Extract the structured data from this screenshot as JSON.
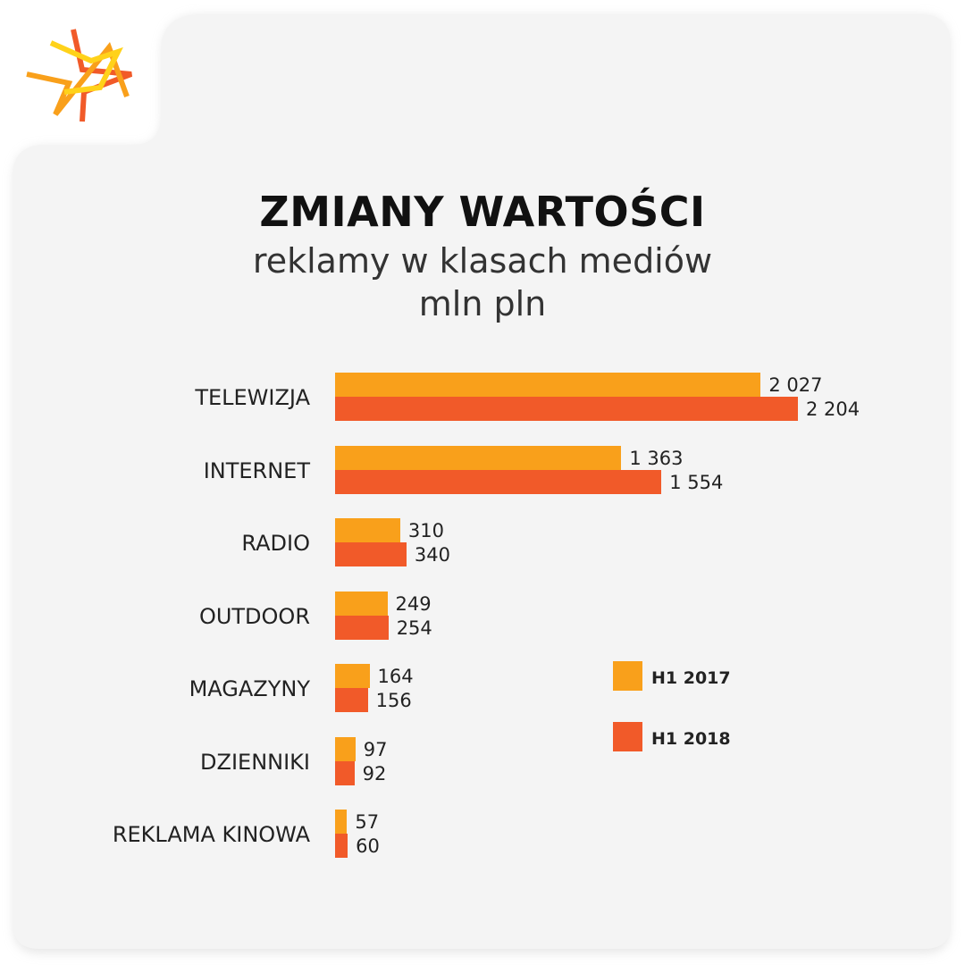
{
  "brand": {
    "logo_name": "star-logo",
    "colors": {
      "yellow": "#ffd21a",
      "orange": "#f9a01b",
      "red": "#f15a29"
    }
  },
  "chart_data": {
    "type": "bar",
    "orientation": "horizontal",
    "title": "ZMIANY WARTOŚCI",
    "subtitle": "reklamy w klasach mediów",
    "unit": "mln pln",
    "categories": [
      "TELEWIZJA",
      "INTERNET",
      "RADIO",
      "OUTDOOR",
      "MAGAZYNY",
      "DZIENNIKI",
      "REKLAMA KINOWA"
    ],
    "series": [
      {
        "name": "H1 2017",
        "color": "#f9a01b",
        "values": [
          2027,
          1363,
          310,
          249,
          164,
          97,
          57
        ],
        "labels": [
          "2 027",
          "1 363",
          "310",
          "249",
          "164",
          "97",
          "57"
        ]
      },
      {
        "name": "H1 2018",
        "color": "#f15a29",
        "values": [
          2204,
          1554,
          340,
          254,
          156,
          92,
          60
        ],
        "labels": [
          "2 204",
          "1 554",
          "340",
          "254",
          "156",
          "92",
          "60"
        ]
      }
    ],
    "xlim": [
      0,
      2204
    ],
    "grid": false,
    "legend": "right"
  }
}
